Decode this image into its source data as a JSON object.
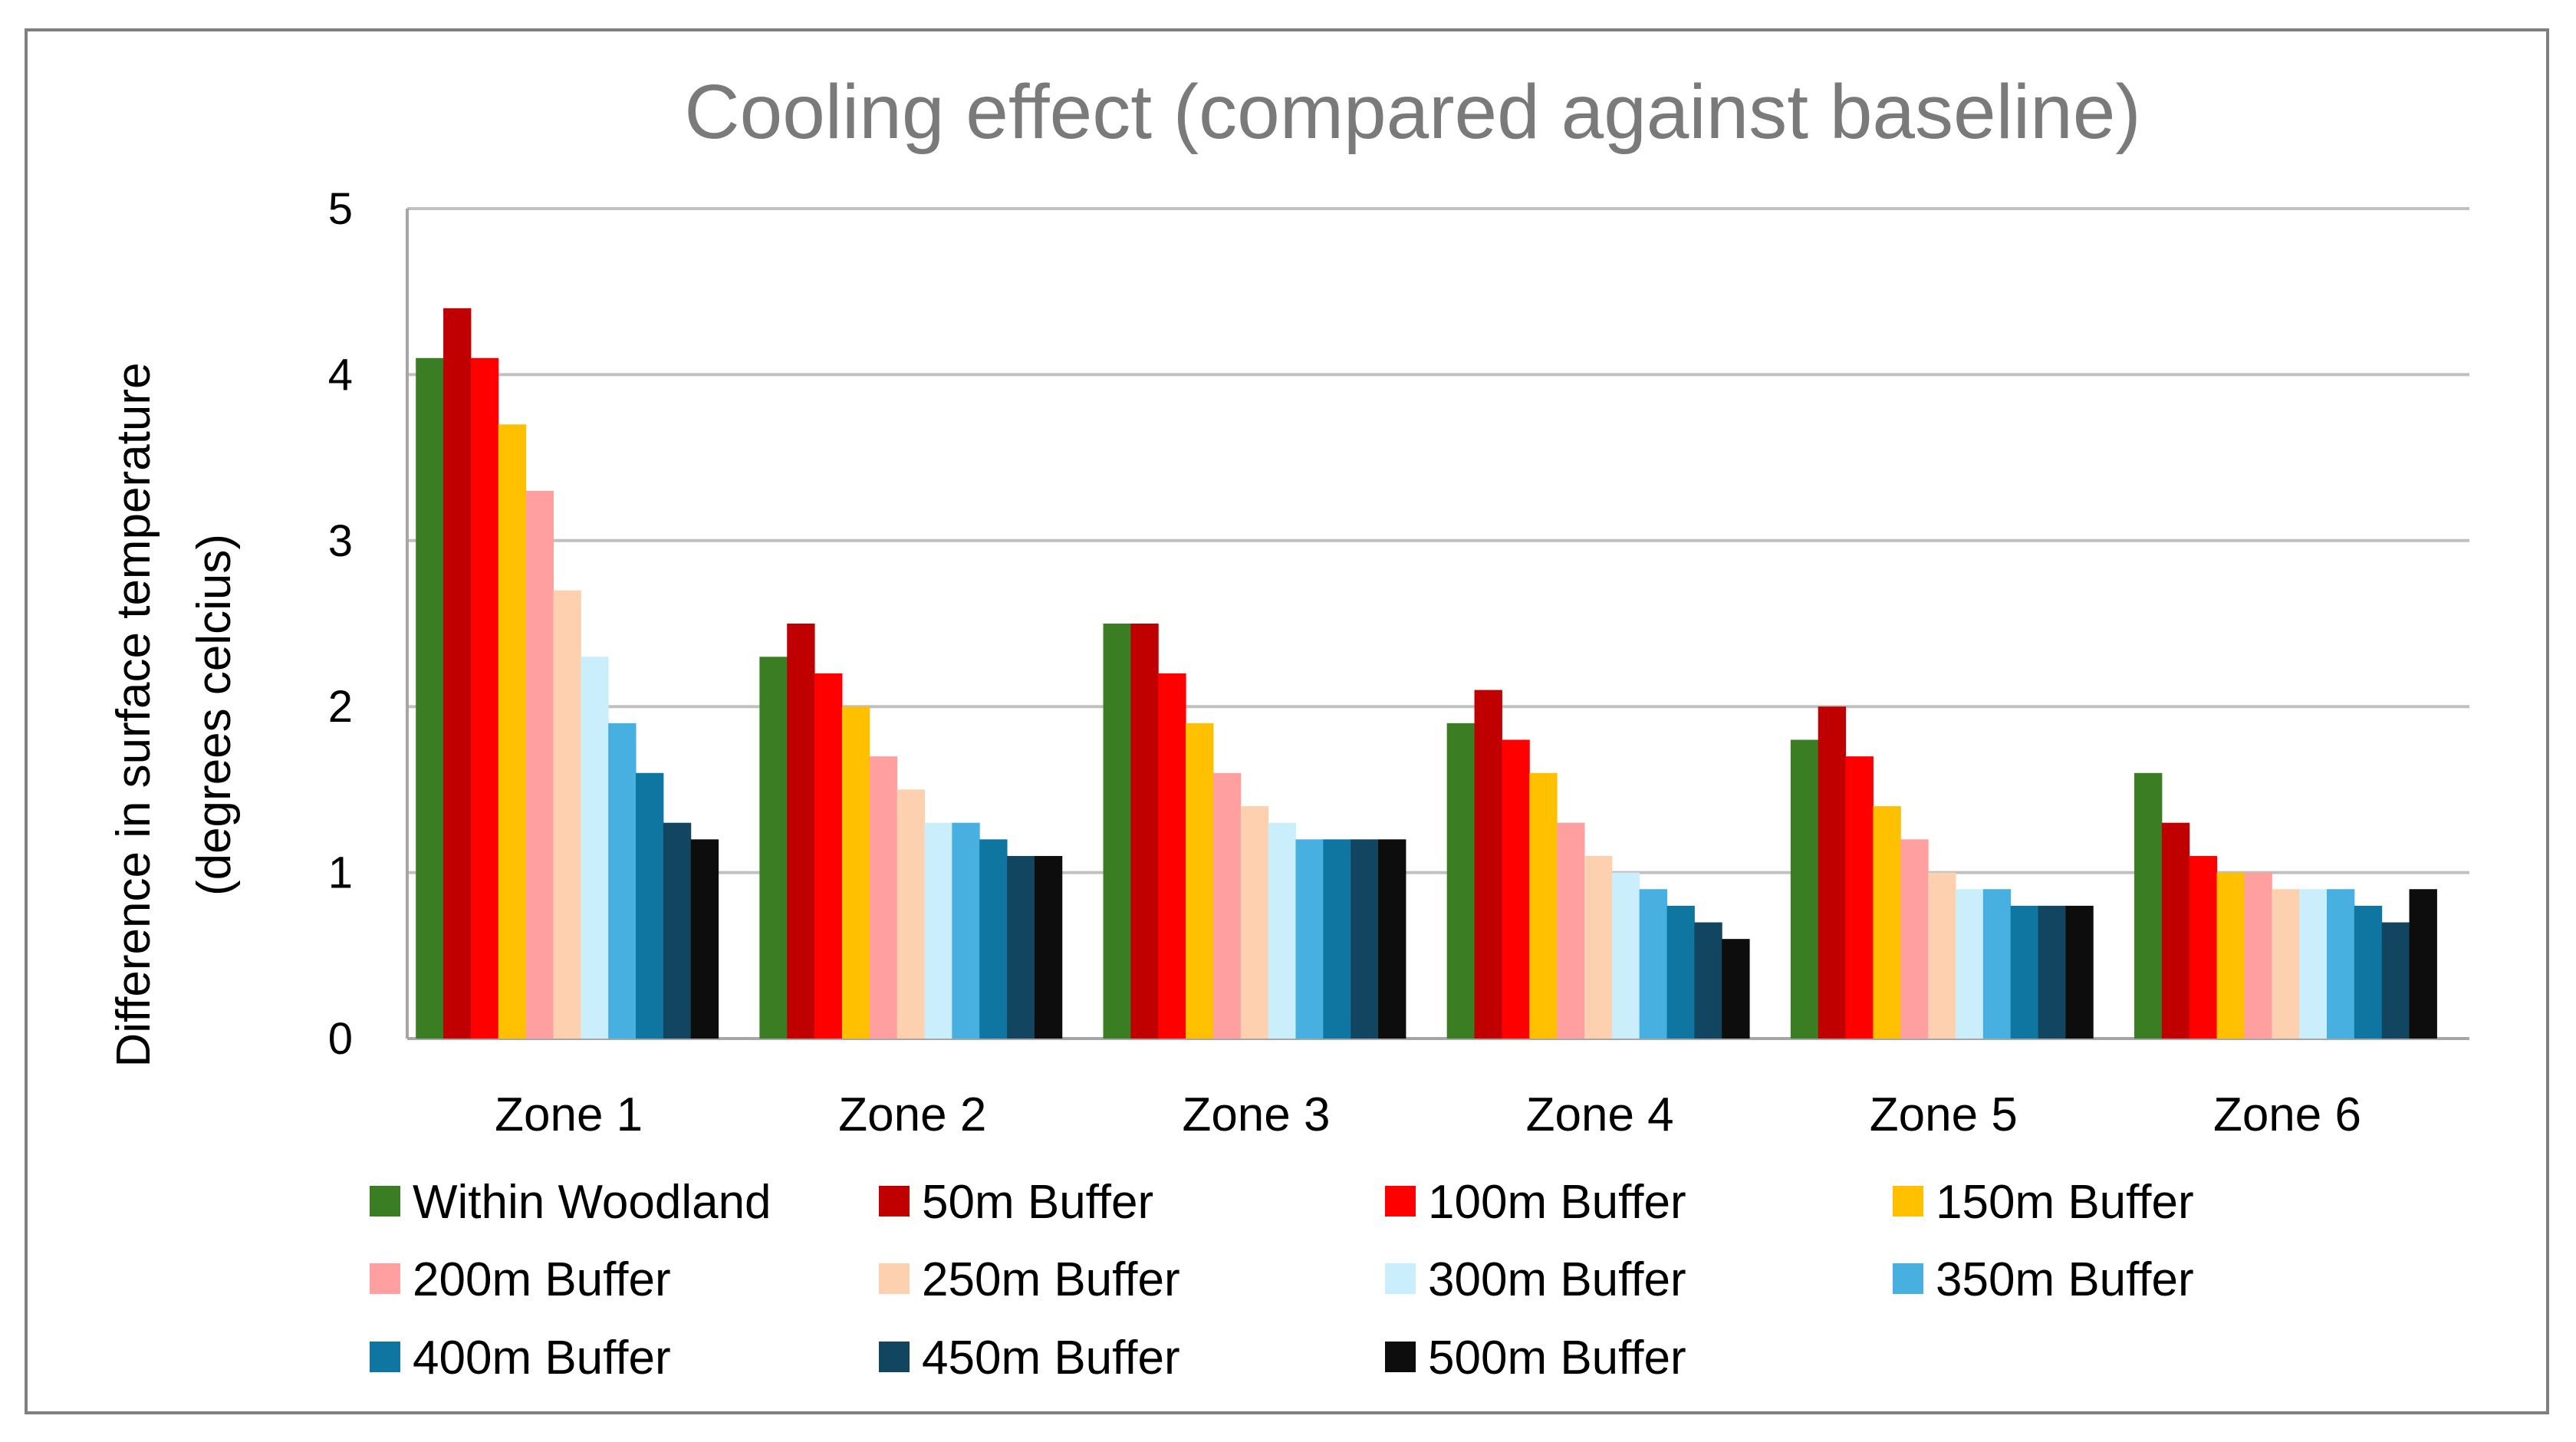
{
  "chart_data": {
    "type": "bar",
    "title": "Cooling effect (compared against baseline)",
    "xlabel": "",
    "ylabel_lines": [
      "Difference in surface temperature",
      "(degrees celcius)"
    ],
    "ylim": [
      0,
      5
    ],
    "yticks": [
      0,
      1,
      2,
      3,
      4,
      5
    ],
    "grid": true,
    "legend_position": "bottom",
    "categories": [
      "Zone 1",
      "Zone 2",
      "Zone 3",
      "Zone 4",
      "Zone 5",
      "Zone 6"
    ],
    "series": [
      {
        "name": "Within Woodland",
        "color": "#3a7d22",
        "values": [
          4.1,
          2.3,
          2.5,
          1.9,
          1.8,
          1.6
        ]
      },
      {
        "name": "50m Buffer",
        "color": "#c00000",
        "values": [
          4.4,
          2.5,
          2.5,
          2.1,
          2.0,
          1.3
        ]
      },
      {
        "name": "100m Buffer",
        "color": "#ff0000",
        "values": [
          4.1,
          2.2,
          2.2,
          1.8,
          1.7,
          1.1
        ]
      },
      {
        "name": "150m Buffer",
        "color": "#ffc000",
        "values": [
          3.7,
          2.0,
          1.9,
          1.6,
          1.4,
          1.0
        ]
      },
      {
        "name": "200m Buffer",
        "color": "#ff9f9f",
        "values": [
          3.3,
          1.7,
          1.6,
          1.3,
          1.2,
          1.0
        ]
      },
      {
        "name": "250m Buffer",
        "color": "#fdd0b0",
        "values": [
          2.7,
          1.5,
          1.4,
          1.1,
          1.0,
          0.9
        ]
      },
      {
        "name": "300m Buffer",
        "color": "#caeefb",
        "values": [
          2.3,
          1.3,
          1.3,
          1.0,
          0.9,
          0.9
        ]
      },
      {
        "name": "350m Buffer",
        "color": "#47b0e0",
        "values": [
          1.9,
          1.3,
          1.2,
          0.9,
          0.9,
          0.9
        ]
      },
      {
        "name": "400m Buffer",
        "color": "#0e76a0",
        "values": [
          1.6,
          1.2,
          1.2,
          0.8,
          0.8,
          0.8
        ]
      },
      {
        "name": "450m Buffer",
        "color": "#124660",
        "values": [
          1.3,
          1.1,
          1.2,
          0.7,
          0.8,
          0.7
        ]
      },
      {
        "name": "500m Buffer",
        "color": "#0d0d0d",
        "values": [
          1.2,
          1.1,
          1.2,
          0.6,
          0.8,
          0.9
        ]
      }
    ]
  }
}
